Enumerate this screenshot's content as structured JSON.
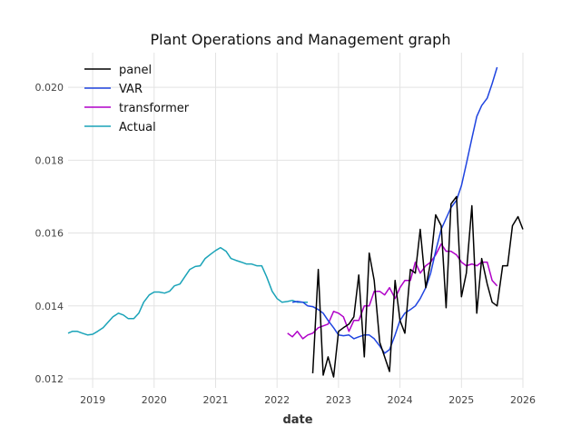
{
  "chart_data": {
    "type": "line",
    "title": "Plant Operations and Management graph",
    "xlabel": "date",
    "ylabel": "",
    "xlim": [
      2018.6,
      2026.0
    ],
    "ylim": [
      0.01175,
      0.02095
    ],
    "x_ticks": [
      "2019",
      "2020",
      "2021",
      "2022",
      "2023",
      "2024",
      "2025",
      "2026"
    ],
    "y_ticks": [
      "0.012",
      "0.014",
      "0.016",
      "0.018",
      "0.020"
    ],
    "grid": true,
    "legend_position": "top-left",
    "series": [
      {
        "name": "panel",
        "color": "#000000",
        "x": [
          2022.58,
          2022.67,
          2022.75,
          2022.83,
          2022.92,
          2023.0,
          2023.08,
          2023.17,
          2023.25,
          2023.33,
          2023.42,
          2023.5,
          2023.58,
          2023.67,
          2023.75,
          2023.83,
          2023.92,
          2024.0,
          2024.08,
          2024.17,
          2024.25,
          2024.33,
          2024.42,
          2024.5,
          2024.58,
          2024.67,
          2024.75,
          2024.83,
          2024.92,
          2025.0,
          2025.08,
          2025.17,
          2025.25,
          2025.33,
          2025.42,
          2025.5,
          2025.58,
          2025.67,
          2025.75,
          2025.83,
          2025.92,
          2026.0
        ],
        "y": [
          0.01215,
          0.015,
          0.0121,
          0.0126,
          0.01205,
          0.0133,
          0.0134,
          0.0135,
          0.0137,
          0.01485,
          0.0126,
          0.01545,
          0.0147,
          0.013,
          0.0126,
          0.0122,
          0.0147,
          0.0136,
          0.01325,
          0.015,
          0.0149,
          0.0161,
          0.0145,
          0.0152,
          0.0165,
          0.0162,
          0.01395,
          0.0168,
          0.017,
          0.01425,
          0.0149,
          0.01675,
          0.0138,
          0.0153,
          0.0146,
          0.0141,
          0.014,
          0.0151,
          0.0151,
          0.0162,
          0.01645,
          0.0161
        ]
      },
      {
        "name": "VAR",
        "color": "#1f44e0",
        "x": [
          2022.25,
          2022.33,
          2022.42,
          2022.5,
          2022.58,
          2022.67,
          2022.75,
          2022.83,
          2022.92,
          2023.0,
          2023.08,
          2023.17,
          2023.25,
          2023.33,
          2023.42,
          2023.5,
          2023.58,
          2023.67,
          2023.75,
          2023.83,
          2023.92,
          2024.0,
          2024.08,
          2024.17,
          2024.25,
          2024.33,
          2024.42,
          2024.5,
          2024.58,
          2024.67,
          2024.75,
          2024.83,
          2024.92,
          2025.0,
          2025.08,
          2025.17,
          2025.25,
          2025.33,
          2025.42,
          2025.5,
          2025.58
        ],
        "y": [
          0.0141,
          0.01412,
          0.0141,
          0.014,
          0.01398,
          0.0139,
          0.0138,
          0.0136,
          0.0134,
          0.0132,
          0.01318,
          0.0132,
          0.0131,
          0.01315,
          0.0132,
          0.0132,
          0.0131,
          0.0129,
          0.0127,
          0.0128,
          0.0132,
          0.0136,
          0.0138,
          0.0139,
          0.014,
          0.0142,
          0.0145,
          0.0149,
          0.0155,
          0.0161,
          0.0164,
          0.0167,
          0.0169,
          0.0173,
          0.0179,
          0.0186,
          0.0192,
          0.0195,
          0.0197,
          0.0201,
          0.02055
        ]
      },
      {
        "name": "transformer",
        "color": "#b000c8",
        "x": [
          2022.17,
          2022.25,
          2022.33,
          2022.42,
          2022.5,
          2022.58,
          2022.67,
          2022.75,
          2022.83,
          2022.92,
          2023.0,
          2023.08,
          2023.17,
          2023.25,
          2023.33,
          2023.42,
          2023.5,
          2023.58,
          2023.67,
          2023.75,
          2023.83,
          2023.92,
          2024.0,
          2024.08,
          2024.17,
          2024.25,
          2024.33,
          2024.42,
          2024.5,
          2024.58,
          2024.67,
          2024.75,
          2024.83,
          2024.92,
          2025.0,
          2025.08,
          2025.17,
          2025.25,
          2025.33,
          2025.42,
          2025.5,
          2025.58
        ],
        "y": [
          0.01325,
          0.01315,
          0.0133,
          0.0131,
          0.0132,
          0.01325,
          0.0134,
          0.01345,
          0.0135,
          0.01385,
          0.0138,
          0.0137,
          0.0133,
          0.0136,
          0.0136,
          0.014,
          0.014,
          0.0144,
          0.0144,
          0.0143,
          0.0145,
          0.0142,
          0.0145,
          0.0147,
          0.0147,
          0.0152,
          0.0149,
          0.0151,
          0.0152,
          0.0154,
          0.0157,
          0.0155,
          0.0155,
          0.0154,
          0.0152,
          0.0151,
          0.01515,
          0.0151,
          0.0152,
          0.0152,
          0.0147,
          0.01455
        ]
      },
      {
        "name": "Actual",
        "color": "#1aa3b8",
        "x": [
          2018.6,
          2018.67,
          2018.75,
          2018.83,
          2018.92,
          2019.0,
          2019.08,
          2019.17,
          2019.25,
          2019.33,
          2019.42,
          2019.5,
          2019.58,
          2019.67,
          2019.75,
          2019.83,
          2019.92,
          2020.0,
          2020.08,
          2020.17,
          2020.25,
          2020.33,
          2020.42,
          2020.5,
          2020.58,
          2020.67,
          2020.75,
          2020.83,
          2020.92,
          2021.0,
          2021.08,
          2021.17,
          2021.25,
          2021.33,
          2021.42,
          2021.5,
          2021.58,
          2021.67,
          2021.75,
          2021.83,
          2021.92,
          2022.0,
          2022.08,
          2022.17,
          2022.25,
          2022.33,
          2022.42,
          2022.5
        ],
        "y": [
          0.01325,
          0.0133,
          0.0133,
          0.01325,
          0.0132,
          0.01322,
          0.0133,
          0.0134,
          0.01355,
          0.0137,
          0.0138,
          0.01375,
          0.01365,
          0.01365,
          0.0138,
          0.0141,
          0.0143,
          0.01438,
          0.01438,
          0.01435,
          0.0144,
          0.01455,
          0.0146,
          0.0148,
          0.015,
          0.01508,
          0.0151,
          0.0153,
          0.01542,
          0.01552,
          0.0156,
          0.0155,
          0.0153,
          0.01525,
          0.0152,
          0.01515,
          0.01515,
          0.0151,
          0.0151,
          0.0148,
          0.0144,
          0.0142,
          0.0141,
          0.01412,
          0.01415,
          0.0141,
          0.0141,
          0.0141
        ]
      }
    ]
  }
}
